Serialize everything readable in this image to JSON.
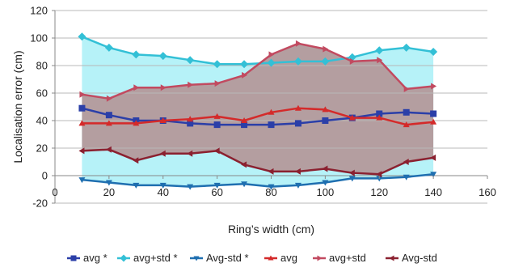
{
  "chart_data": {
    "type": "line",
    "title": "",
    "xlabel": "Ring’s width (cm)",
    "ylabel": "Localisation error (cm)",
    "xlim": [
      0,
      160
    ],
    "ylim": [
      -20,
      120
    ],
    "x_ticks": [
      "0",
      "20",
      "40",
      "60",
      "80",
      "100",
      "120",
      "140",
      "160"
    ],
    "y_ticks": [
      "-20",
      "0",
      "20",
      "40",
      "60",
      "80",
      "100",
      "120"
    ],
    "grid": "horizontal",
    "legend_position": "bottom",
    "x": [
      10,
      20,
      30,
      40,
      50,
      60,
      70,
      80,
      90,
      100,
      110,
      120,
      130,
      140
    ],
    "series": [
      {
        "name": "avg *",
        "color": "#2b3fa8",
        "marker": "square",
        "values": [
          49,
          44,
          40,
          40,
          38,
          37,
          37,
          37,
          38,
          40,
          42,
          45,
          46,
          45
        ]
      },
      {
        "name": "avg+std *",
        "color": "#33c0d6",
        "marker": "diamond",
        "values": [
          101,
          93,
          88,
          87,
          84,
          81,
          81,
          82,
          83,
          83,
          86,
          91,
          93,
          90
        ]
      },
      {
        "name": "Avg-std *",
        "color": "#1f6fb0",
        "marker": "triangle-down",
        "values": [
          -3,
          -5,
          -7,
          -7,
          -8,
          -7,
          -6,
          -8,
          -7,
          -5,
          -2,
          -2,
          -1,
          1
        ]
      },
      {
        "name": "avg",
        "color": "#d42a2a",
        "marker": "triangle-up",
        "values": [
          38,
          38,
          38,
          40,
          41,
          43,
          40,
          46,
          49,
          48,
          42,
          42,
          37,
          39
        ]
      },
      {
        "name": "avg+std",
        "color": "#c24a60",
        "marker": "triangle-right",
        "values": [
          59,
          56,
          64,
          64,
          66,
          67,
          73,
          88,
          96,
          92,
          83,
          84,
          63,
          65
        ]
      },
      {
        "name": "Avg-std",
        "color": "#8b2130",
        "marker": "triangle-left",
        "values": [
          18,
          19,
          11,
          16,
          16,
          18,
          8,
          3,
          3,
          5,
          2,
          1,
          10,
          13
        ]
      }
    ],
    "bands": [
      {
        "between": [
          "Avg-std *",
          "avg+std *"
        ],
        "fill": "#b6f2f8"
      },
      {
        "between": [
          "Avg-std",
          "avg+std"
        ],
        "fill": "#b49ea0"
      }
    ]
  }
}
